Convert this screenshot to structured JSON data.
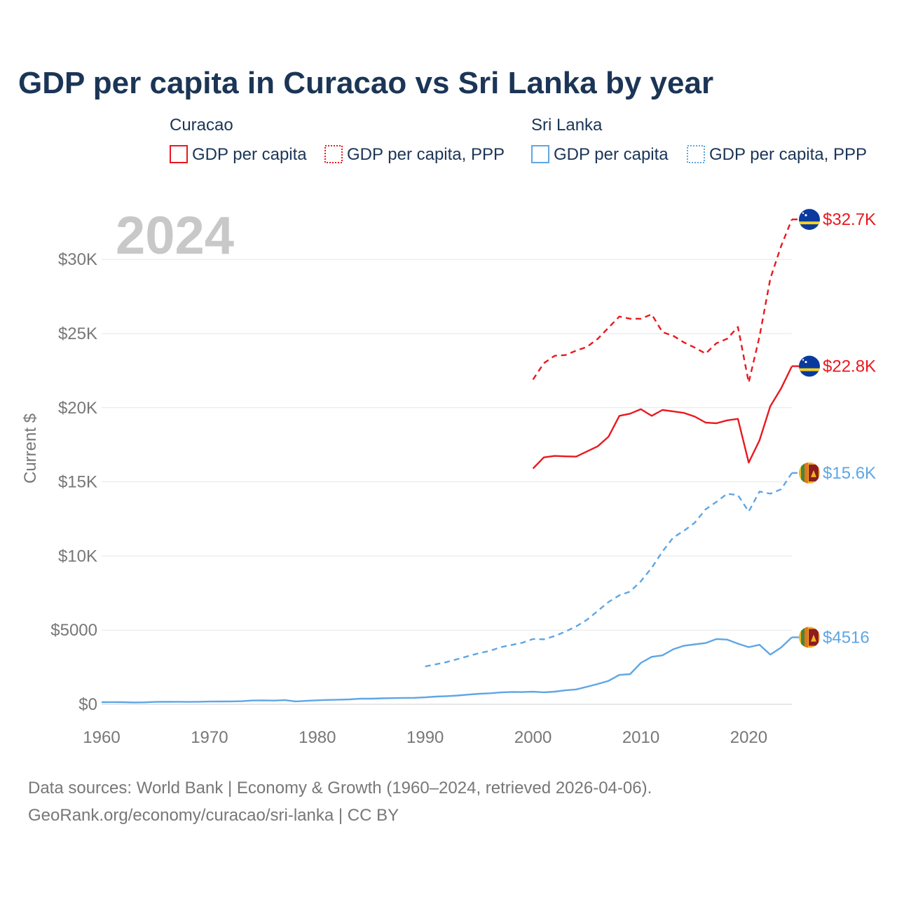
{
  "chart_data": {
    "type": "line",
    "title": "GDP per capita in Curacao vs Sri Lanka by year",
    "ylabel": "Current $",
    "xlabel": "",
    "year_label": "2024",
    "xlim": [
      1960,
      2024
    ],
    "ylim": [
      0,
      33000
    ],
    "x_ticks": [
      1960,
      1970,
      1980,
      1990,
      2000,
      2010,
      2020
    ],
    "x_tick_labels": [
      "1960",
      "1970",
      "1980",
      "1990",
      "2000",
      "2010",
      "2020"
    ],
    "y_ticks": [
      0,
      5000,
      10000,
      15000,
      20000,
      25000,
      30000
    ],
    "y_tick_labels": [
      "$0",
      "$5000",
      "$10K",
      "$15K",
      "$20K",
      "$25K",
      "$30K"
    ],
    "legend": {
      "groups": [
        {
          "country": "Curacao",
          "items": [
            "GDP per capita",
            "GDP per capita, PPP"
          ]
        },
        {
          "country": "Sri Lanka",
          "items": [
            "GDP per capita",
            "GDP per capita, PPP"
          ]
        }
      ]
    },
    "colors": {
      "curacao": "#e8191f",
      "sri_lanka": "#5ea6e5",
      "title": "#1b3556",
      "axis_text": "#777777",
      "grid": "#e6e6e6",
      "year": "#c8c8c8"
    },
    "series": [
      {
        "name": "Curacao GDP per capita",
        "country": "Curacao",
        "style": "solid",
        "color": "#e8191f",
        "end_label": "$22.8K",
        "x": [
          2000,
          2001,
          2002,
          2003,
          2004,
          2005,
          2006,
          2007,
          2008,
          2009,
          2010,
          2011,
          2012,
          2013,
          2014,
          2015,
          2016,
          2017,
          2018,
          2019,
          2020,
          2021,
          2022,
          2023,
          2024
        ],
        "values": [
          15900,
          16650,
          16750,
          16720,
          16700,
          17050,
          17400,
          18050,
          19450,
          19600,
          19900,
          19450,
          19850,
          19750,
          19650,
          19400,
          19000,
          18950,
          19150,
          19250,
          16300,
          17800,
          20100,
          21300,
          22800
        ]
      },
      {
        "name": "Curacao GDP per capita, PPP",
        "country": "Curacao",
        "style": "dashed",
        "color": "#e8191f",
        "end_label": "$32.7K",
        "x": [
          2000,
          2001,
          2002,
          2003,
          2004,
          2005,
          2006,
          2007,
          2008,
          2009,
          2010,
          2011,
          2012,
          2013,
          2014,
          2015,
          2016,
          2017,
          2018,
          2019,
          2020,
          2021,
          2022,
          2023,
          2024
        ],
        "values": [
          21900,
          23000,
          23500,
          23550,
          23850,
          24100,
          24650,
          25400,
          26150,
          26000,
          26000,
          26300,
          25100,
          24850,
          24400,
          24050,
          23650,
          24350,
          24650,
          25450,
          21700,
          24800,
          28700,
          30900,
          32700
        ]
      },
      {
        "name": "Sri Lanka GDP per capita",
        "country": "Sri Lanka",
        "style": "solid",
        "color": "#5ea6e5",
        "end_label": "$4516",
        "x": [
          1960,
          1961,
          1962,
          1963,
          1964,
          1965,
          1966,
          1967,
          1968,
          1969,
          1970,
          1971,
          1972,
          1973,
          1974,
          1975,
          1976,
          1977,
          1978,
          1979,
          1980,
          1981,
          1982,
          1983,
          1984,
          1985,
          1986,
          1987,
          1988,
          1989,
          1990,
          1991,
          1992,
          1993,
          1994,
          1995,
          1996,
          1997,
          1998,
          1999,
          2000,
          2001,
          2002,
          2003,
          2004,
          2005,
          2006,
          2007,
          2008,
          2009,
          2010,
          2011,
          2012,
          2013,
          2014,
          2015,
          2016,
          2017,
          2018,
          2019,
          2020,
          2021,
          2022,
          2023,
          2024
        ],
        "values": [
          142,
          145,
          140,
          125,
          130,
          160,
          165,
          170,
          160,
          170,
          185,
          190,
          195,
          210,
          255,
          260,
          250,
          280,
          195,
          230,
          270,
          295,
          310,
          330,
          380,
          380,
          400,
          415,
          430,
          435,
          470,
          520,
          550,
          590,
          650,
          710,
          740,
          800,
          830,
          820,
          850,
          810,
          850,
          940,
          1000,
          1180,
          1370,
          1580,
          1980,
          2030,
          2790,
          3200,
          3300,
          3710,
          3950,
          4040,
          4130,
          4400,
          4360,
          4090,
          3850,
          4010,
          3350,
          3830,
          4516
        ]
      },
      {
        "name": "Sri Lanka GDP per capita, PPP",
        "country": "Sri Lanka",
        "style": "dashed",
        "color": "#5ea6e5",
        "end_label": "$15.6K",
        "x": [
          1990,
          1991,
          1992,
          1993,
          1994,
          1995,
          1996,
          1997,
          1998,
          1999,
          2000,
          2001,
          2002,
          2003,
          2004,
          2005,
          2006,
          2007,
          2008,
          2009,
          2010,
          2011,
          2012,
          2013,
          2014,
          2015,
          2016,
          2017,
          2018,
          2019,
          2020,
          2021,
          2022,
          2023,
          2024
        ],
        "values": [
          2550,
          2700,
          2850,
          3050,
          3250,
          3450,
          3600,
          3850,
          4000,
          4150,
          4400,
          4380,
          4600,
          4900,
          5250,
          5700,
          6300,
          6900,
          7350,
          7600,
          8300,
          9200,
          10300,
          11250,
          11700,
          12250,
          13150,
          13650,
          14200,
          14100,
          13000,
          14350,
          14200,
          14500,
          15600
        ]
      }
    ],
    "sources_line1": "Data sources: World Bank | Economy & Growth (1960–2024, retrieved 2026-04-06).",
    "sources_line2": "GeoRank.org/economy/curacao/sri-lanka | CC BY"
  }
}
